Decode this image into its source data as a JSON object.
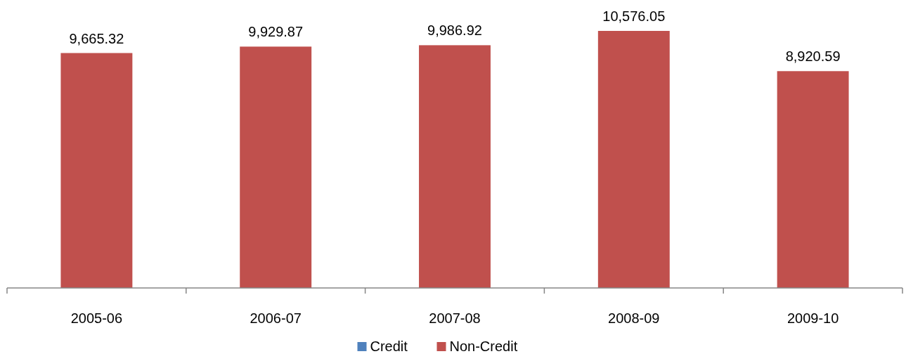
{
  "chart_data": {
    "type": "bar",
    "categories": [
      "2005-06",
      "2006-07",
      "2007-08",
      "2008-09",
      "2009-10"
    ],
    "series": [
      {
        "name": "Credit",
        "color": "#4f81bd",
        "values": [
          null,
          null,
          null,
          null,
          null
        ]
      },
      {
        "name": "Non-Credit",
        "color": "#c0504d",
        "values": [
          9665.32,
          9929.87,
          9986.92,
          10576.05,
          8920.59
        ],
        "value_labels": [
          "9,665.32",
          "9,929.87",
          "9,986.92",
          "10,576.05",
          "8,920.59"
        ]
      }
    ],
    "stacked": true,
    "tick_labels": "x",
    "grid": false,
    "legend": "bottom"
  }
}
